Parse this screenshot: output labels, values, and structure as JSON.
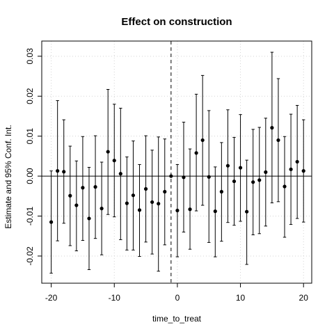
{
  "chart_data": {
    "type": "scatter",
    "title": "Effect on construction",
    "xlabel": "time_to_treat",
    "ylabel": "Estimate and 95% Conf. Int.",
    "xlim": [
      -21.5,
      21.3
    ],
    "ylim": [
      -0.0268,
      0.0338
    ],
    "x_ticks": [
      -20,
      -10,
      0,
      10,
      20
    ],
    "x_tick_labels": [
      "-20",
      "-10",
      "0",
      "10",
      "20"
    ],
    "y_ticks": [
      -0.02,
      -0.01,
      0.0,
      0.01,
      0.02,
      0.03
    ],
    "y_tick_labels": [
      "-0.02",
      "-0.01",
      "0.00",
      "0.01",
      "0.02",
      "0.03"
    ],
    "grid": true,
    "reference_hline": 0,
    "reference_vline": -1,
    "points": [
      {
        "x": -20,
        "est": -0.0115,
        "lo": -0.0243,
        "hi": 0.0013
      },
      {
        "x": -19,
        "est": 0.0013,
        "lo": -0.0162,
        "hi": 0.0189
      },
      {
        "x": -18,
        "est": 0.0011,
        "lo": -0.0118,
        "hi": 0.0141
      },
      {
        "x": -17,
        "est": -0.0049,
        "lo": -0.0174,
        "hi": 0.0075
      },
      {
        "x": -16,
        "est": -0.0073,
        "lo": -0.0187,
        "hi": 0.0038
      },
      {
        "x": -15,
        "est": -0.0029,
        "lo": -0.0161,
        "hi": 0.0099
      },
      {
        "x": -14,
        "est": -0.0106,
        "lo": -0.0234,
        "hi": 0.0022
      },
      {
        "x": -13,
        "est": -0.0027,
        "lo": -0.0156,
        "hi": 0.0101
      },
      {
        "x": -12,
        "est": -0.0081,
        "lo": -0.0197,
        "hi": 0.0035
      },
      {
        "x": -11,
        "est": 0.0061,
        "lo": -0.0096,
        "hi": 0.0217
      },
      {
        "x": -10,
        "est": 0.0039,
        "lo": -0.0102,
        "hi": 0.018
      },
      {
        "x": -9,
        "est": 0.0006,
        "lo": -0.0159,
        "hi": 0.017
      },
      {
        "x": -8,
        "est": -0.0068,
        "lo": -0.0185,
        "hi": 0.0048
      },
      {
        "x": -7,
        "est": -0.0048,
        "lo": -0.0185,
        "hi": 0.0088
      },
      {
        "x": -6,
        "est": -0.0085,
        "lo": -0.0201,
        "hi": 0.0029
      },
      {
        "x": -5,
        "est": -0.0032,
        "lo": -0.0165,
        "hi": 0.0101
      },
      {
        "x": -4,
        "est": -0.0065,
        "lo": -0.0195,
        "hi": 0.0065
      },
      {
        "x": -3,
        "est": -0.0069,
        "lo": -0.0238,
        "hi": 0.0098
      },
      {
        "x": -2,
        "est": -0.0039,
        "lo": -0.0172,
        "hi": 0.0093
      },
      {
        "x": -1,
        "est": 0.0,
        "lo": 0.0,
        "hi": 0.0
      },
      {
        "x": 0,
        "est": -0.0086,
        "lo": -0.0202,
        "hi": 0.0029
      },
      {
        "x": 1,
        "est": -0.0003,
        "lo": -0.014,
        "hi": 0.0135
      },
      {
        "x": 2,
        "est": -0.0083,
        "lo": -0.0183,
        "hi": 0.0068
      },
      {
        "x": 3,
        "est": 0.0058,
        "lo": -0.0087,
        "hi": 0.0205
      },
      {
        "x": 4,
        "est": 0.009,
        "lo": -0.0073,
        "hi": 0.0252
      },
      {
        "x": 5,
        "est": -0.0002,
        "lo": -0.0166,
        "hi": 0.0164
      },
      {
        "x": 6,
        "est": -0.0088,
        "lo": -0.0202,
        "hi": 0.0023
      },
      {
        "x": 7,
        "est": -0.0039,
        "lo": -0.0163,
        "hi": 0.0084
      },
      {
        "x": 8,
        "est": 0.0026,
        "lo": -0.0116,
        "hi": 0.0166
      },
      {
        "x": 9,
        "est": -0.0013,
        "lo": -0.0123,
        "hi": 0.0097
      },
      {
        "x": 10,
        "est": 0.0021,
        "lo": -0.0113,
        "hi": 0.0154
      },
      {
        "x": 11,
        "est": -0.0089,
        "lo": -0.0221,
        "hi": 0.004
      },
      {
        "x": 12,
        "est": -0.0015,
        "lo": -0.0147,
        "hi": 0.0117
      },
      {
        "x": 13,
        "est": -0.001,
        "lo": -0.0144,
        "hi": 0.0122
      },
      {
        "x": 14,
        "est": 0.001,
        "lo": -0.0125,
        "hi": 0.0145
      },
      {
        "x": 15,
        "est": 0.0121,
        "lo": -0.0067,
        "hi": 0.031
      },
      {
        "x": 16,
        "est": 0.009,
        "lo": -0.0064,
        "hi": 0.0244
      },
      {
        "x": 17,
        "est": -0.0026,
        "lo": -0.0153,
        "hi": 0.0099
      },
      {
        "x": 18,
        "est": 0.0017,
        "lo": -0.0121,
        "hi": 0.0155
      },
      {
        "x": 19,
        "est": 0.0036,
        "lo": -0.0106,
        "hi": 0.0177
      },
      {
        "x": 20,
        "est": 0.0013,
        "lo": -0.0115,
        "hi": 0.0141
      }
    ]
  }
}
